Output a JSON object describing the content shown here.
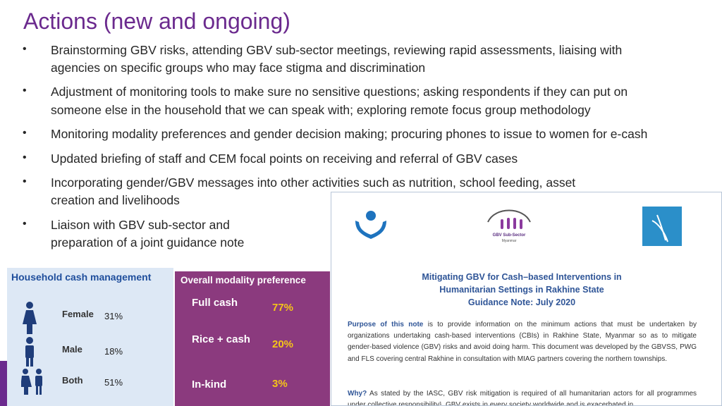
{
  "header": {
    "title": "Actions (new and ongoing)"
  },
  "bullets": [
    {
      "lines": [
        "Brainstorming GBV risks, attending GBV sub-sector meetings, reviewing rapid assessments, liaising with",
        "agencies on specific groups who may face stigma and discrimination"
      ]
    },
    {
      "lines": [
        "Adjustment of monitoring tools to make sure no sensitive questions; asking respondents if they can put on",
        "someone else in the household that we can speak with; exploring remote focus group methodology"
      ]
    },
    {
      "lines": [
        "Monitoring modality preferences and gender decision making; procuring phones to issue to women for e-cash"
      ]
    },
    {
      "lines": [
        "Updated briefing of staff and CEM focal points on receiving and referral of GBV cases"
      ]
    },
    {
      "lines": [
        "Incorporating gender/GBV messages into other activities such as nutrition, school feeding, asset",
        "creation and livelihoods"
      ]
    },
    {
      "lines": [
        "Liaison with GBV sub-sector and",
        "preparation of a joint guidance note"
      ]
    }
  ],
  "household": {
    "title": "Household cash management",
    "rows": [
      {
        "label": "Female",
        "value": "31%"
      },
      {
        "label": "Male",
        "value": "18%"
      },
      {
        "label": "Both",
        "value": "51%"
      }
    ]
  },
  "modality": {
    "title": "Overall modality preference",
    "rows": [
      {
        "label": "Full cash",
        "value": "77%"
      },
      {
        "label": "Rice + cash",
        "value": "20%"
      },
      {
        "label": "In-kind",
        "value": "3%"
      }
    ]
  },
  "guidance": {
    "logo_text": [
      "GBV Sub-Sector",
      "Myanmar"
    ],
    "title_lines": [
      "Mitigating GBV for Cash–based Interventions in",
      "Humanitarian Settings in Rakhine State",
      "Guidance Note: July 2020"
    ],
    "purpose_label": "Purpose of this note",
    "purpose_text": "is to provide information on the minimum actions that must be undertaken by organizations undertaking cash-based interventions (CBIs) in Rakhine State, Myanmar so as to mitigate gender-based violence (GBV) risks and avoid doing harm. This document was developed by the GBVSS, PWG and FLS covering central Rakhine in consultation with MIAG partners covering the northern townships.",
    "why_label": "Why?",
    "why_text": "As stated by the IASC, GBV risk mitigation is required of all humanitarian actors for all programmes under collective responsibility¹. GBV exists in every society worldwide and is exacerbated in"
  }
}
